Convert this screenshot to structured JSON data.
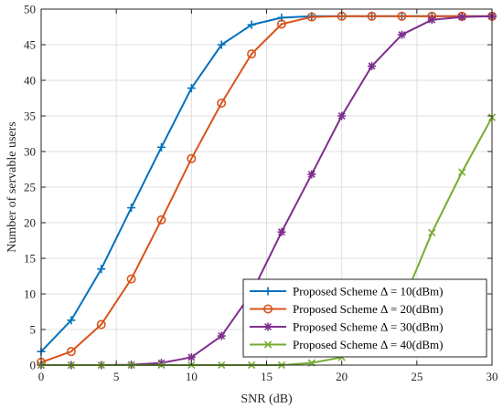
{
  "chart_data": {
    "type": "line",
    "xlabel": "SNR (dB)",
    "ylabel": "Number of servable users",
    "xlim": [
      0,
      30
    ],
    "ylim": [
      0,
      50
    ],
    "xticks": [
      0,
      5,
      10,
      15,
      20,
      25,
      30
    ],
    "yticks": [
      0,
      5,
      10,
      15,
      20,
      25,
      30,
      35,
      40,
      45,
      50
    ],
    "grid": true,
    "legend_position": "bottom-right",
    "x": [
      0,
      2,
      4,
      6,
      8,
      10,
      12,
      14,
      16,
      18,
      20,
      22,
      24,
      26,
      28,
      30
    ],
    "series": [
      {
        "name": "Proposed Scheme Δ = 10(dBm)",
        "color": "#0072BD",
        "marker": "plus",
        "values": [
          1.9,
          6.3,
          13.5,
          22.1,
          30.6,
          38.9,
          45.0,
          47.8,
          48.8,
          49.0,
          49.0,
          49.0,
          49.0,
          49.0,
          49.0,
          49.0
        ]
      },
      {
        "name": "Proposed Scheme Δ = 20(dBm)",
        "color": "#D95319",
        "marker": "circle",
        "values": [
          0.4,
          1.9,
          5.7,
          12.1,
          20.4,
          29.0,
          36.8,
          43.7,
          47.9,
          48.9,
          49.0,
          49.0,
          49.0,
          49.0,
          49.0,
          49.0
        ]
      },
      {
        "name": "Proposed Scheme Δ = 30(dBm)",
        "color": "#7E2F8E",
        "marker": "star",
        "values": [
          0.0,
          0.0,
          0.0,
          0.05,
          0.3,
          1.1,
          4.1,
          10.1,
          18.7,
          26.8,
          35.0,
          42.0,
          46.4,
          48.5,
          48.9,
          49.0
        ]
      },
      {
        "name": "Proposed Scheme Δ = 40(dBm)",
        "color": "#77AC30",
        "marker": "x",
        "values": [
          0.0,
          0.0,
          0.0,
          0.0,
          0.0,
          0.0,
          0.0,
          0.0,
          0.0,
          0.3,
          1.1,
          2.8,
          8.5,
          18.6,
          27.1,
          34.8
        ]
      }
    ]
  }
}
